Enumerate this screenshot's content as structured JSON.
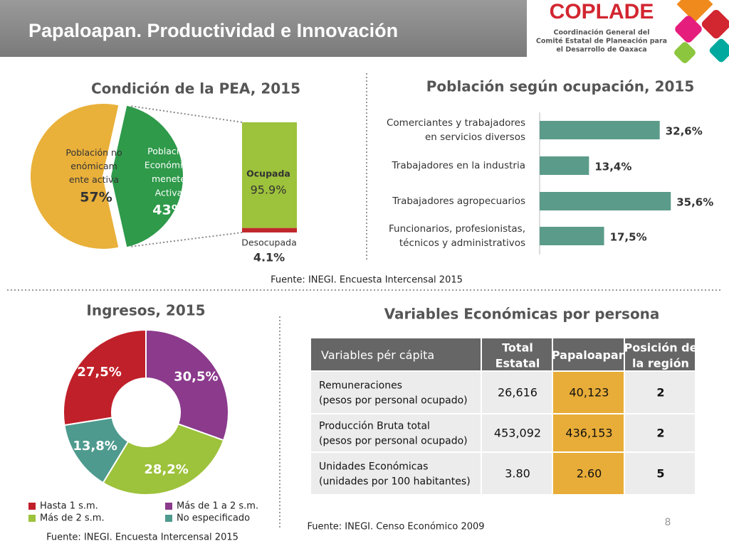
{
  "header": {
    "title": "Papaloapan.  Productividad e Innovación"
  },
  "logo": {
    "name": "COPLADE",
    "lines": [
      "Coordinación General del",
      "Comité Estatal de Planeación para",
      "el Desarrollo de Oaxaca"
    ]
  },
  "chart_data": [
    {
      "type": "pie",
      "title": "Condición de la PEA, 2015",
      "categories": [
        "Población no\nenómicam\nente activa",
        "Población\nEconómica\nmenete\nActiva"
      ],
      "values": [
        57,
        43
      ],
      "value_labels": [
        "57%",
        "43%"
      ],
      "colors": [
        "#e9b03a",
        "#2e9a4a"
      ],
      "breakdown": {
        "categories": [
          "Ocupada",
          "Desocupada"
        ],
        "values": [
          95.9,
          4.1
        ],
        "value_labels": [
          "95.9%",
          "4.1%"
        ],
        "colors": [
          "#9dc23b",
          "#c0272d"
        ]
      }
    },
    {
      "type": "hbar",
      "title": "Población según ocupación, 2015",
      "categories": [
        "Comerciantes y trabajadores\nen servicios diversos",
        "Trabajadores en la industria",
        "Trabajadores agropecuarios",
        "Funcionarios, profesionistas,\ntécnicos y administrativos"
      ],
      "values": [
        32.6,
        13.4,
        35.6,
        17.5
      ],
      "value_labels": [
        "32,6%",
        "13,4%",
        "35,6%",
        "17,5%"
      ],
      "color": "#5b9b8a",
      "xlim": [
        0,
        40
      ]
    },
    {
      "type": "donut",
      "title": "Ingresos, 2015",
      "categories": [
        "Hasta 1 s.m.",
        "Más de 1 a 2 s.m.",
        "Más de 2 s.m.",
        "No especificado"
      ],
      "values": [
        27.5,
        30.5,
        28.2,
        13.8
      ],
      "value_labels": [
        "27,5%",
        "30,5%",
        "28,2%",
        "13,8%"
      ],
      "colors": [
        "#c0202a",
        "#8b3a8c",
        "#9dc23b",
        "#4e9a8e"
      ]
    }
  ],
  "sources": [
    "Fuente: INEGI. Encuesta Intercensal 2015",
    "Fuente: INEGI. Encuesta Intercensal 2015",
    "Fuente: INEGI. Censo Económico 2009"
  ],
  "table": {
    "title": "Variables Económicas por persona",
    "header": [
      "Variables pér cápita",
      "Total\nEstatal",
      "Papaloapan",
      "Posición de\nla región"
    ],
    "rows": [
      [
        "Remuneraciones\n(pesos por personal ocupado)",
        "26,616",
        "40,123",
        "2"
      ],
      [
        "Producción Bruta total\n(pesos por personal ocupado)",
        "453,092",
        "436,153",
        "2"
      ],
      [
        "Unidades Económicas\n(unidades por 100 habitantes)",
        "3.80",
        "2.60",
        "5"
      ]
    ]
  },
  "page_number": "8"
}
